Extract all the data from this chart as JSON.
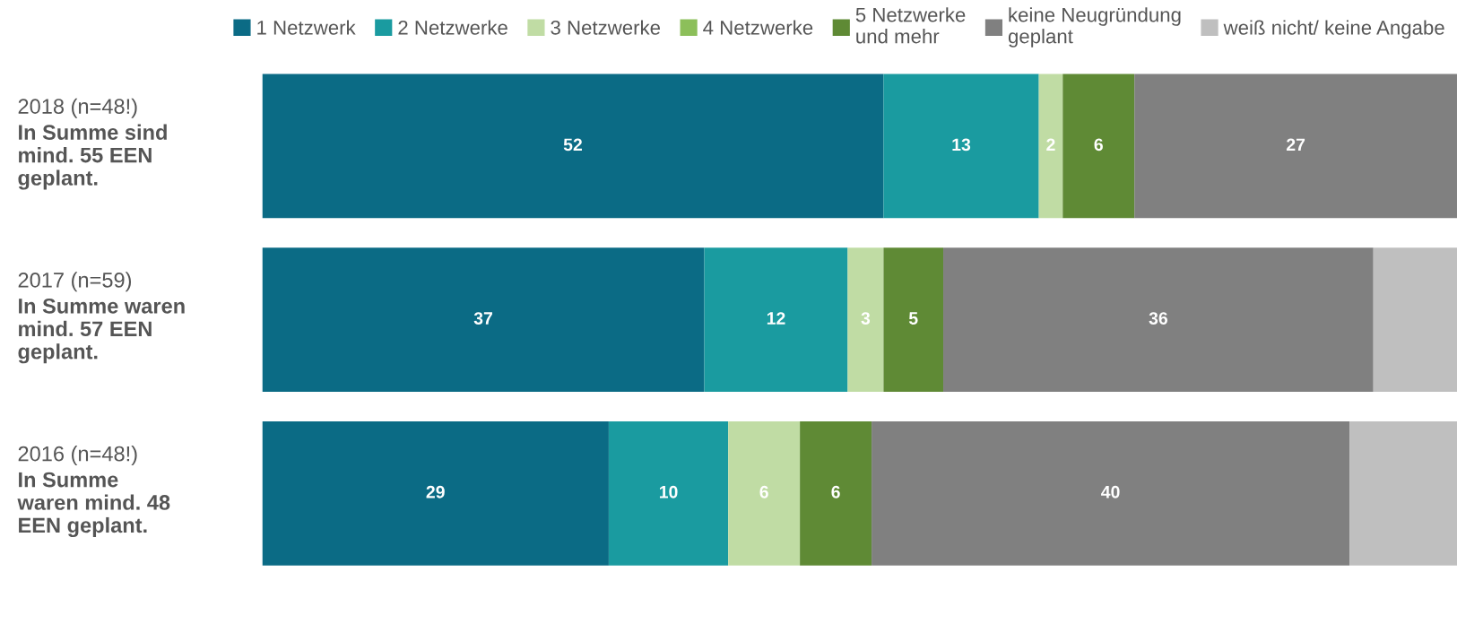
{
  "chart_data": {
    "type": "bar",
    "orientation": "horizontal",
    "stacked": true,
    "categories": [
      "2018 (n=48!)\nIn Summe sind\nmind. 55 EEN\ngeplant.",
      "2017 (n=59)\nIn Summe waren\nmind. 57 EEN\ngeplant.",
      "2016 (n=48!)\nIn Summe\nwaren mind. 48\nEEN geplant."
    ],
    "series": [
      {
        "name": "1 Netzwerk",
        "color": "#0b6b85",
        "values": [
          52,
          37,
          29
        ],
        "value_labels": [
          "52",
          "37",
          "29"
        ]
      },
      {
        "name": "2 Netzwerke",
        "color": "#1a9ba0",
        "values": [
          13,
          12,
          10
        ],
        "value_labels": [
          "13",
          "12",
          "10"
        ]
      },
      {
        "name": "3 Netzwerke",
        "color": "#c0dca4",
        "values": [
          2,
          3,
          6
        ],
        "value_labels": [
          "2",
          "3",
          "6"
        ]
      },
      {
        "name": "4 Netzwerke",
        "color": "#8cbf5a",
        "values": [
          0,
          0,
          0
        ],
        "value_labels": [
          null,
          null,
          null
        ]
      },
      {
        "name": "5 Netzwerke\nund mehr",
        "color": "#5f8a35",
        "values": [
          6,
          5,
          6
        ],
        "value_labels": [
          "6",
          "5",
          "6"
        ]
      },
      {
        "name": "keine Neugründung\ngeplant",
        "color": "#808080",
        "values": [
          27,
          36,
          40
        ],
        "value_labels": [
          "27",
          "36",
          "40"
        ]
      },
      {
        "name": "weiß nicht/ keine Angabe",
        "color": "#bfbfbf",
        "values": [
          0,
          7,
          9
        ],
        "value_labels": [
          null,
          null,
          null
        ]
      }
    ],
    "xlim": [
      0,
      100
    ],
    "tick_labels": "y",
    "legend": "top"
  }
}
